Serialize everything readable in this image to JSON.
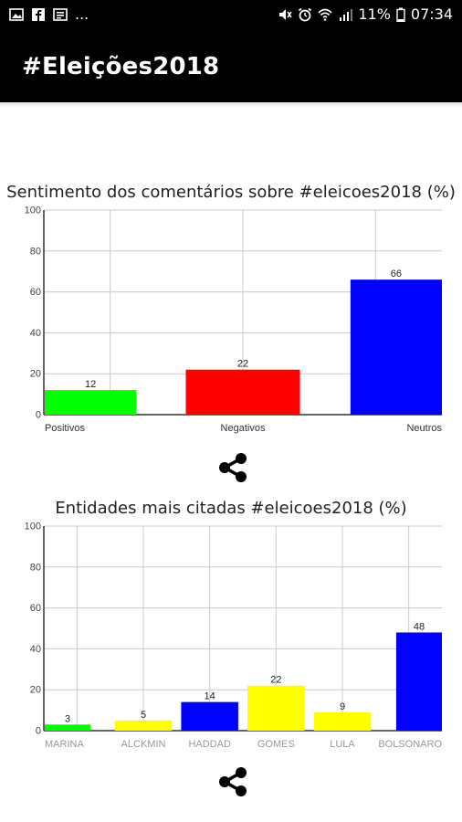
{
  "status_bar": {
    "left_icons": [
      "image-icon",
      "facebook-icon",
      "news-icon"
    ],
    "overflow": "...",
    "battery": "11%",
    "time": "07:34"
  },
  "app_bar": {
    "title": "#Eleições2018"
  },
  "chart_data": [
    {
      "type": "bar",
      "title": "Sentimento dos comentários sobre #eleicoes2018 (%)",
      "categories": [
        "Positivos",
        "Negativos",
        "Neutros"
      ],
      "values": [
        12,
        22,
        66
      ],
      "colors": [
        "#00ff00",
        "#ff0000",
        "#0000ff"
      ],
      "ylim": [
        0,
        100
      ],
      "yticks": [
        0,
        20,
        40,
        60,
        80,
        100
      ],
      "grid": true
    },
    {
      "type": "bar",
      "title": "Entidades mais citadas #eleicoes2018 (%)",
      "categories": [
        "MARINA",
        "ALCKMIN",
        "HADDAD",
        "GOMES",
        "LULA",
        "BOLSONARO"
      ],
      "values": [
        3,
        5,
        14,
        22,
        9,
        48
      ],
      "colors": [
        "#00ff00",
        "#ffff00",
        "#0000ff",
        "#ffff00",
        "#ffff00",
        "#0000ff"
      ],
      "ylim": [
        0,
        100
      ],
      "yticks": [
        0,
        20,
        40,
        60,
        80,
        100
      ],
      "grid": true
    }
  ]
}
